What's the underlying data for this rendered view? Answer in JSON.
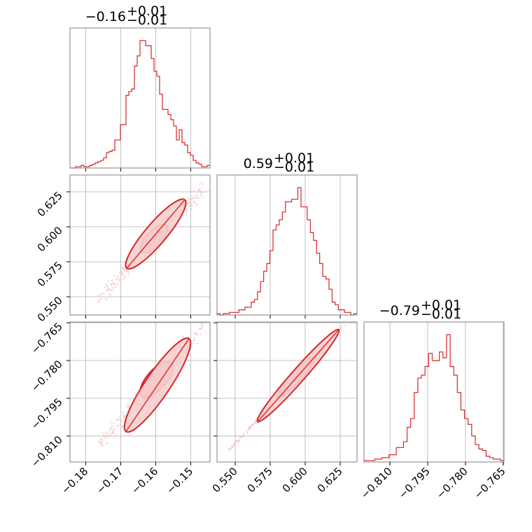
{
  "params": [
    {
      "title_value": "−0.16",
      "title_plus": "+0.01",
      "title_minus": "−0.01",
      "range": [
        -0.1845,
        -0.1445
      ]
    },
    {
      "title_value": "0.59",
      "title_plus": "+0.01",
      "title_minus": "−0.01",
      "range": [
        0.537,
        0.637
      ]
    },
    {
      "title_value": "−0.79",
      "title_plus": "+0.01",
      "title_minus": "−0.01",
      "range": [
        -0.8203,
        -0.7647
      ]
    }
  ],
  "colors": {
    "series": "#d62728",
    "fill_inner": "#e3888a",
    "fill_outer": "#f5cfcf",
    "scatter": "#f7c4c4",
    "grid": "#b0b0b0",
    "spine": "#808080"
  },
  "chart_data": [
    {
      "id": "hist-p0",
      "type": "histogram",
      "param_index": 0,
      "bins": [
        -0.1845,
        -0.1445
      ],
      "counts": [
        0,
        0,
        1,
        1,
        2,
        1,
        1,
        2,
        3,
        4,
        5,
        6,
        8,
        12,
        13,
        14,
        22,
        22,
        34,
        34,
        57,
        60,
        62,
        80,
        88,
        100,
        100,
        96,
        96,
        86,
        76,
        72,
        58,
        46,
        46,
        42,
        38,
        33,
        22,
        30,
        20,
        18,
        12,
        10,
        6,
        4,
        3,
        1,
        1,
        2
      ],
      "xticks": [
        -0.18,
        -0.17,
        -0.16,
        -0.15
      ],
      "xtick_labels": [
        "−0.18",
        "−0.17",
        "−0.16",
        "−0.15"
      ],
      "grid": true
    },
    {
      "id": "hist-p1",
      "type": "histogram",
      "param_index": 1,
      "bins": [
        0.537,
        0.637
      ],
      "counts": [
        1,
        0,
        1,
        1,
        2,
        2,
        2,
        4,
        4,
        6,
        6,
        10,
        12,
        18,
        26,
        34,
        40,
        50,
        66,
        70,
        74,
        80,
        88,
        88,
        90,
        90,
        99,
        84,
        84,
        74,
        64,
        58,
        48,
        40,
        30,
        28,
        20,
        10,
        8,
        4,
        4,
        2,
        2,
        0,
        1
      ],
      "xticks": [
        0.55,
        0.575,
        0.6,
        0.625
      ],
      "xtick_labels": [
        "0.550",
        "0.575",
        "0.600",
        "0.625"
      ],
      "grid": true
    },
    {
      "id": "hist-p2",
      "type": "histogram",
      "param_index": 2,
      "bins": [
        -0.8203,
        -0.7647
      ],
      "counts": [
        1,
        1,
        1,
        2,
        2,
        3,
        3,
        5,
        5,
        10,
        10,
        14,
        24,
        30,
        48,
        58,
        60,
        66,
        75,
        70,
        70,
        76,
        72,
        88,
        66,
        60,
        48,
        36,
        30,
        26,
        18,
        12,
        9,
        8,
        4,
        3,
        2,
        2,
        1
      ],
      "xticks": [
        -0.81,
        -0.795,
        -0.78,
        -0.765
      ],
      "xtick_labels": [
        "−0.810",
        "−0.795",
        "−0.780",
        "−0.765"
      ],
      "grid": true
    },
    {
      "id": "pair-p1-p0",
      "type": "scatter",
      "x_param": 0,
      "y_param": 1,
      "center": [
        -0.1598,
        0.5923
      ],
      "x_spread": [
        -0.1765,
        -0.1465
      ],
      "slope": 2.62,
      "scatter_width": 0.006,
      "contours": [
        {
          "level": "inner",
          "from": [
            -0.164,
            0.5821
          ],
          "to": [
            -0.1569,
            0.6009
          ],
          "width": 0.004
        },
        {
          "level": "outer",
          "from": [
            -0.1683,
            0.5704
          ],
          "to": [
            -0.1517,
            0.6193
          ],
          "width": 0.006
        }
      ],
      "yticks": [
        0.55,
        0.575,
        0.6,
        0.625
      ],
      "ytick_labels": [
        "0.550",
        "0.575",
        "0.600",
        "0.625"
      ],
      "grid": true
    },
    {
      "id": "pair-p2-p0",
      "type": "scatter",
      "x_param": 0,
      "y_param": 2,
      "center": [
        -0.1598,
        -0.7875
      ],
      "x_spread": [
        -0.1765,
        -0.1465
      ],
      "slope": 1.57,
      "scatter_width": 0.004,
      "contours": [
        {
          "level": "inner",
          "from": [
            -0.164,
            -0.7942
          ],
          "to": [
            -0.1555,
            -0.7808
          ],
          "width": 0.003
        },
        {
          "level": "outer",
          "from": [
            -0.1685,
            -0.8082
          ],
          "to": [
            -0.1505,
            -0.7713
          ],
          "width": 0.004
        }
      ],
      "yticks": [
        -0.81,
        -0.795,
        -0.78,
        -0.765
      ],
      "ytick_labels": [
        "−0.810",
        "−0.795",
        "−0.780",
        "−0.765"
      ],
      "grid": true
    },
    {
      "id": "pair-p2-p1",
      "type": "scatter",
      "x_param": 1,
      "y_param": 2,
      "center": [
        0.5923,
        -0.7875
      ],
      "x_spread": [
        0.545,
        0.635
      ],
      "slope": 0.605,
      "scatter_width": 0.0008,
      "contours": [
        {
          "level": "inner",
          "from": [
            0.58,
            -0.7948
          ],
          "to": [
            0.607,
            -0.7785
          ],
          "width": 0.0012
        },
        {
          "level": "outer",
          "from": [
            0.566,
            -0.8043
          ],
          "to": [
            0.624,
            -0.7677
          ],
          "width": 0.0018
        }
      ],
      "grid": true
    }
  ]
}
